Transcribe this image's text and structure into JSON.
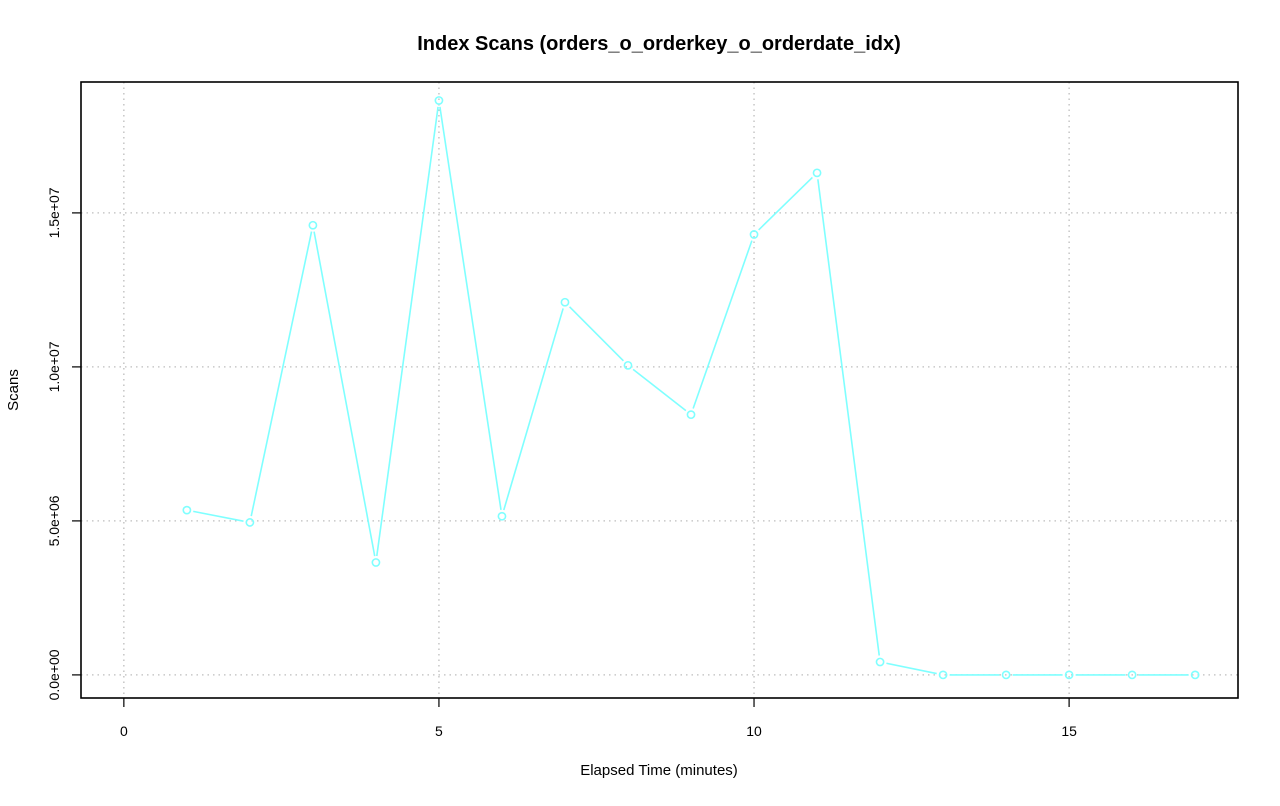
{
  "chart_data": {
    "type": "line",
    "title": "Index Scans (orders_o_orderkey_o_orderdate_idx)",
    "xlabel": "Elapsed Time (minutes)",
    "ylabel": "Scans",
    "xlim": [
      -0.68,
      17.68
    ],
    "ylim": [
      -750000,
      19250000
    ],
    "x_ticks": [
      0,
      5,
      10,
      15
    ],
    "x_tick_labels": [
      "0",
      "5",
      "10",
      "15"
    ],
    "y_ticks": [
      0,
      5000000,
      10000000,
      15000000
    ],
    "y_tick_labels": [
      "0.0e+00",
      "5.0e+06",
      "1.0e+07",
      "1.5e+07"
    ],
    "grid": true,
    "series": [
      {
        "color": "#7fffff",
        "marker": "open-circle",
        "x": [
          1,
          2,
          3,
          4,
          5,
          6,
          7,
          8,
          9,
          10,
          11,
          12,
          13,
          14,
          15,
          16,
          17
        ],
        "y": [
          5350000,
          4950000,
          14600000,
          3650000,
          18650000,
          5150000,
          12100000,
          10050000,
          8450000,
          14300000,
          16300000,
          420000,
          0,
          0,
          0,
          0,
          0
        ]
      }
    ]
  }
}
